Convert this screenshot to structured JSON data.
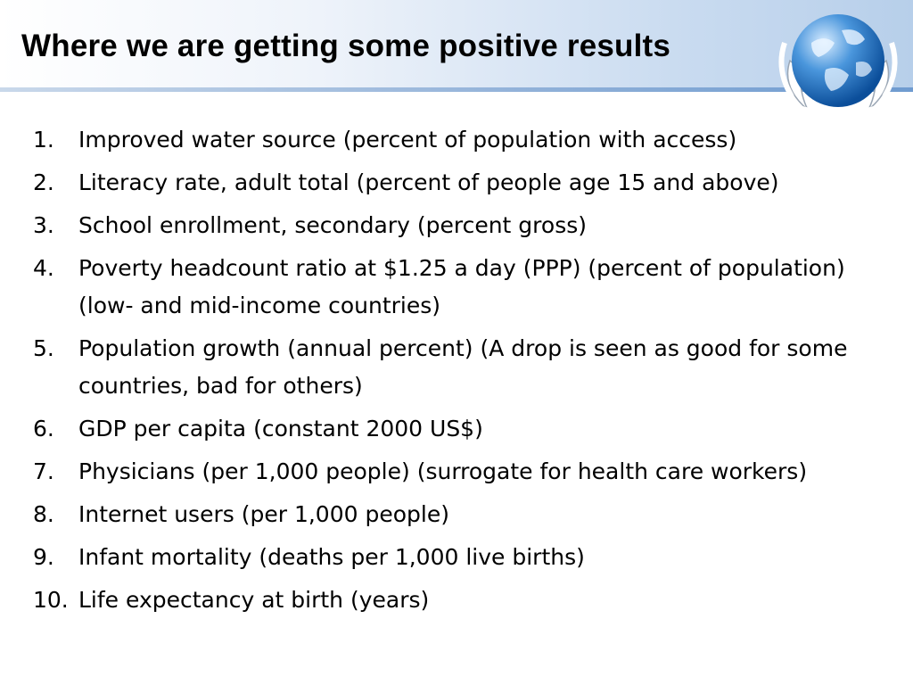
{
  "slide": {
    "title": "Where we are getting some positive results"
  },
  "list": {
    "items": [
      {
        "num": "1.",
        "text": "Improved water source (percent of population with access)"
      },
      {
        "num": "2.",
        "text": "Literacy rate, adult total (percent of people age 15 and above)"
      },
      {
        "num": "3.",
        "text": "School enrollment, secondary (percent gross)"
      },
      {
        "num": "4.",
        "text": "Poverty headcount ratio at $1.25 a day (PPP) (percent of population) (low- and mid-income countries)"
      },
      {
        "num": "5.",
        "text": "Population growth (annual percent) (A drop is seen as good for some countries, bad for others)"
      },
      {
        "num": "6.",
        "text": "GDP per capita (constant 2000 US$)"
      },
      {
        "num": "7.",
        "text": "Physicians (per 1,000 people) (surrogate for health care workers)"
      },
      {
        "num": "8.",
        "text": "Internet users (per 1,000 people)"
      },
      {
        "num": "9.",
        "text": "Infant mortality (deaths per 1,000 live births)"
      },
      {
        "num": "10.",
        "text": "Life expectancy at birth (years)"
      }
    ]
  },
  "logo": {
    "icon": "globe-laurel-icon",
    "color": "#2f78c4"
  }
}
